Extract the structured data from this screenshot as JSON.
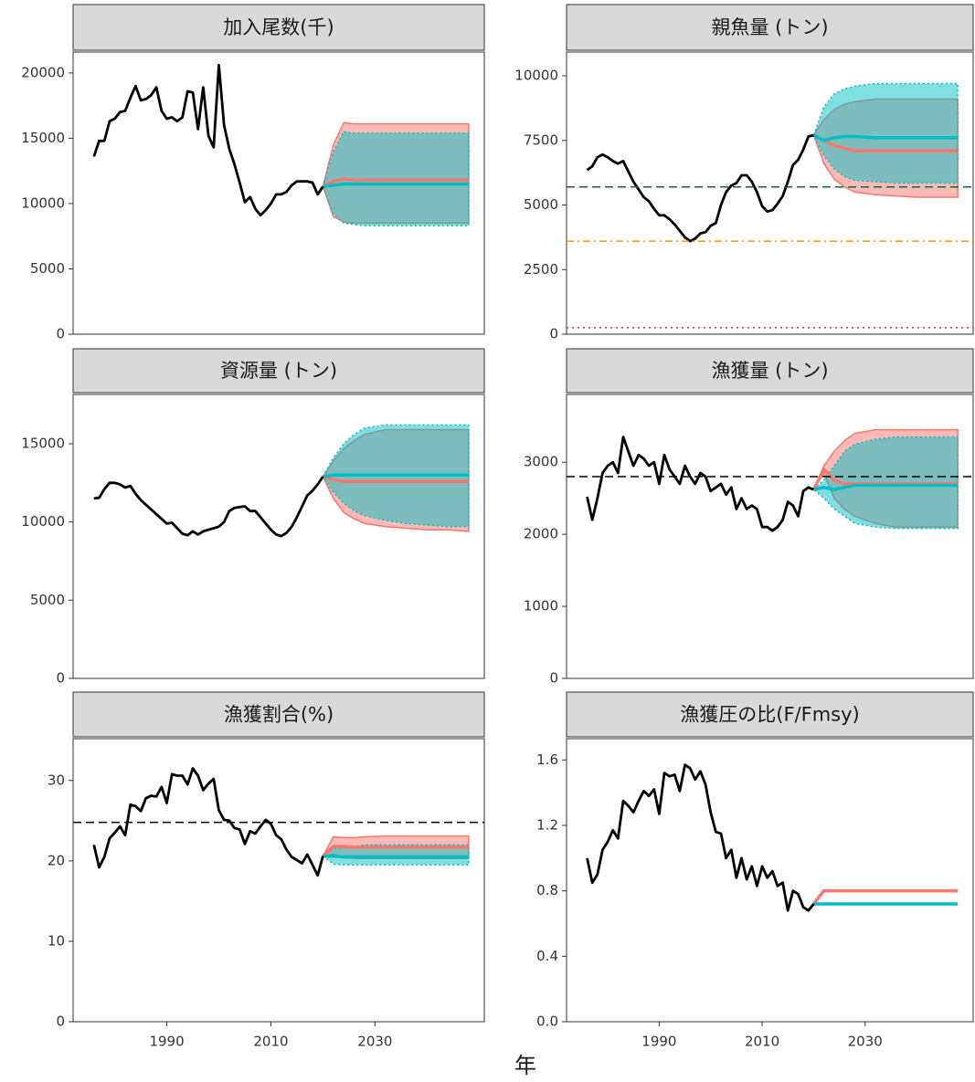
{
  "x_axis": {
    "label": "年",
    "xlim": [
      1972,
      2051
    ],
    "xticks": [
      1990,
      2010,
      2030
    ]
  },
  "years": [
    1976,
    1977,
    1978,
    1979,
    1980,
    1981,
    1982,
    1983,
    1984,
    1985,
    1986,
    1987,
    1988,
    1989,
    1990,
    1991,
    1992,
    1993,
    1994,
    1995,
    1996,
    1997,
    1998,
    1999,
    2000,
    2001,
    2002,
    2003,
    2004,
    2005,
    2006,
    2007,
    2008,
    2009,
    2010,
    2011,
    2012,
    2013,
    2014,
    2015,
    2016,
    2017,
    2018,
    2019,
    2020
  ],
  "projection_years": [
    2020,
    2022,
    2024,
    2026,
    2028,
    2032,
    2036,
    2040,
    2044,
    2048
  ],
  "chart_data": [
    {
      "type": "line",
      "title": "加入尾数(千)",
      "ylim": [
        0,
        21600
      ],
      "yticks": [
        0,
        5000,
        10000,
        15000,
        20000
      ],
      "series": [
        {
          "color": "#000000",
          "values": [
            13600,
            14800,
            14800,
            16300,
            16500,
            17000,
            17100,
            18100,
            19000,
            17900,
            18000,
            18300,
            18900,
            17100,
            16500,
            16600,
            16300,
            16600,
            18600,
            18500,
            15700,
            18900,
            15200,
            14300,
            20600,
            16000,
            14200,
            13000,
            11600,
            10100,
            10500,
            9600,
            9100,
            9500,
            10000,
            10700,
            10700,
            10900,
            11400,
            11700,
            11700,
            11700,
            11600,
            10700,
            11300
          ]
        }
      ],
      "projections": [
        {
          "color": "#F8766D",
          "median": [
            11300,
            11700,
            11900,
            11800,
            11800,
            11800,
            11800,
            11800,
            11800,
            11800
          ],
          "lower": [
            11300,
            9000,
            8600,
            8500,
            8500,
            8500,
            8500,
            8500,
            8500,
            8500
          ],
          "upper": [
            11300,
            14500,
            16200,
            16100,
            16100,
            16100,
            16100,
            16100,
            16100,
            16100
          ]
        },
        {
          "color": "#00BFC4",
          "median": [
            11300,
            11400,
            11500,
            11500,
            11500,
            11500,
            11500,
            11500,
            11500,
            11500
          ],
          "lower": [
            11300,
            9200,
            8500,
            8400,
            8300,
            8300,
            8300,
            8300,
            8300,
            8300
          ],
          "upper": [
            11300,
            14000,
            15500,
            15400,
            15400,
            15400,
            15400,
            15400,
            15400,
            15400
          ]
        }
      ],
      "hlines": []
    },
    {
      "type": "line",
      "title": "親魚量 (トン)",
      "ylim": [
        0,
        10920
      ],
      "yticks": [
        0,
        2500,
        5000,
        7500,
        10000
      ],
      "series": [
        {
          "color": "#000000",
          "values": [
            6350,
            6500,
            6850,
            6950,
            6850,
            6700,
            6600,
            6700,
            6300,
            5900,
            5600,
            5300,
            5150,
            4850,
            4600,
            4600,
            4450,
            4250,
            4000,
            3750,
            3600,
            3700,
            3900,
            3950,
            4200,
            4300,
            5000,
            5500,
            5750,
            5850,
            6150,
            6150,
            5900,
            5500,
            4950,
            4750,
            4800,
            5050,
            5350,
            5900,
            6550,
            6750,
            7150,
            7650,
            7700
          ]
        }
      ],
      "projections": [
        {
          "color": "#F8766D",
          "median": [
            7700,
            7500,
            7300,
            7200,
            7100,
            7100,
            7100,
            7100,
            7100,
            7100
          ],
          "lower": [
            7700,
            6600,
            6000,
            5700,
            5500,
            5400,
            5350,
            5300,
            5300,
            5300
          ],
          "upper": [
            7700,
            8300,
            8700,
            8900,
            9000,
            9100,
            9100,
            9100,
            9100,
            9100
          ]
        },
        {
          "color": "#00BFC4",
          "median": [
            7700,
            7500,
            7600,
            7650,
            7650,
            7600,
            7600,
            7600,
            7600,
            7600
          ],
          "lower": [
            7700,
            6900,
            6400,
            6100,
            5950,
            5900,
            5850,
            5850,
            5850,
            5850
          ],
          "upper": [
            7700,
            8800,
            9300,
            9500,
            9600,
            9700,
            9700,
            9700,
            9700,
            9700
          ]
        }
      ],
      "hlines": [
        {
          "value": 5700,
          "color": "#1b5e40",
          "dash": "dashed"
        },
        {
          "value": 3600,
          "color": "#e6a000",
          "dash": "dotdash"
        },
        {
          "value": 250,
          "color": "#b03a2e",
          "dash": "dotted"
        }
      ]
    },
    {
      "type": "line",
      "title": "資源量 (トン)",
      "ylim": [
        0,
        18150
      ],
      "yticks": [
        0,
        5000,
        10000,
        15000
      ],
      "series": [
        {
          "color": "#000000",
          "values": [
            11500,
            11550,
            12100,
            12500,
            12500,
            12400,
            12200,
            12300,
            11800,
            11400,
            11100,
            10800,
            10500,
            10200,
            9900,
            9950,
            9600,
            9250,
            9150,
            9400,
            9200,
            9400,
            9500,
            9600,
            9700,
            10000,
            10700,
            10900,
            10950,
            11000,
            10700,
            10700,
            10300,
            9900,
            9500,
            9200,
            9100,
            9300,
            9700,
            10300,
            11000,
            11700,
            12000,
            12400,
            12900
          ]
        }
      ],
      "projections": [
        {
          "color": "#F8766D",
          "median": [
            12900,
            12700,
            12600,
            12600,
            12600,
            12600,
            12600,
            12600,
            12600,
            12600
          ],
          "lower": [
            12900,
            11500,
            10600,
            10200,
            9900,
            9700,
            9600,
            9500,
            9500,
            9400
          ],
          "upper": [
            12900,
            13900,
            14700,
            15200,
            15600,
            15900,
            15900,
            15900,
            15900,
            15900
          ]
        },
        {
          "color": "#00BFC4",
          "median": [
            12900,
            13000,
            13000,
            13000,
            13000,
            13000,
            13000,
            13000,
            13000,
            13000
          ],
          "lower": [
            12900,
            11900,
            11200,
            10700,
            10400,
            10100,
            9900,
            9800,
            9700,
            9700
          ],
          "upper": [
            12900,
            14100,
            15000,
            15600,
            16000,
            16200,
            16200,
            16200,
            16200,
            16200
          ]
        }
      ],
      "hlines": []
    },
    {
      "type": "line",
      "title": "漁獲量 (トン)",
      "ylim": [
        0,
        3940
      ],
      "yticks": [
        0,
        1000,
        2000,
        3000
      ],
      "series": [
        {
          "color": "#000000",
          "values": [
            2520,
            2200,
            2500,
            2850,
            2950,
            3000,
            2850,
            3350,
            3150,
            2950,
            3100,
            3050,
            2950,
            3000,
            2700,
            3100,
            2900,
            2800,
            2700,
            2950,
            2800,
            2700,
            2850,
            2800,
            2600,
            2650,
            2700,
            2550,
            2650,
            2350,
            2500,
            2350,
            2400,
            2350,
            2100,
            2100,
            2050,
            2100,
            2200,
            2450,
            2400,
            2250,
            2600,
            2650,
            2620
          ]
        }
      ],
      "projections": [
        {
          "color": "#F8766D",
          "median": [
            2620,
            2900,
            2750,
            2700,
            2700,
            2700,
            2700,
            2700,
            2700,
            2700
          ],
          "lower": [
            2620,
            2850,
            2500,
            2350,
            2250,
            2150,
            2100,
            2100,
            2100,
            2100
          ],
          "upper": [
            2620,
            2950,
            3150,
            3300,
            3400,
            3450,
            3450,
            3450,
            3450,
            3450
          ]
        },
        {
          "color": "#00BFC4",
          "median": [
            2620,
            2650,
            2620,
            2650,
            2680,
            2680,
            2680,
            2680,
            2680,
            2680
          ],
          "lower": [
            2620,
            2500,
            2350,
            2250,
            2150,
            2100,
            2080,
            2080,
            2080,
            2080
          ],
          "upper": [
            2620,
            2750,
            2950,
            3150,
            3250,
            3320,
            3350,
            3350,
            3350,
            3350
          ]
        }
      ],
      "hlines": [
        {
          "value": 2800,
          "color": "#000000",
          "dash": "dashed"
        }
      ]
    },
    {
      "type": "line",
      "title": "漁獲割合(%)",
      "ylim": [
        0,
        35.2
      ],
      "yticks": [
        0,
        10,
        20,
        30
      ],
      "series": [
        {
          "color": "#000000",
          "values": [
            22,
            19.2,
            20.5,
            22.8,
            23.5,
            24.3,
            23.2,
            27,
            26.8,
            26.2,
            27.8,
            28.1,
            28,
            29.2,
            27.2,
            30.8,
            30.6,
            30.6,
            29.5,
            31.5,
            30.6,
            28.8,
            29.6,
            30.2,
            26.3,
            25.1,
            25,
            24.1,
            23.9,
            22.1,
            23.7,
            23.4,
            24.3,
            25.1,
            24.6,
            23.2,
            22.7,
            21.4,
            20.5,
            20.1,
            19.7,
            20.8,
            19.5,
            18.2,
            20.6
          ]
        }
      ],
      "projections": [
        {
          "color": "#F8766D",
          "median": [
            20.6,
            21.8,
            21.8,
            21.7,
            21.7,
            21.7,
            21.7,
            21.7,
            21.7,
            21.7
          ],
          "lower": [
            20.6,
            20.8,
            20.5,
            20.3,
            20.3,
            20.3,
            20.3,
            20.3,
            20.3,
            20.3
          ],
          "upper": [
            20.6,
            23,
            22.9,
            22.9,
            23,
            23.1,
            23.1,
            23.1,
            23.1,
            23.1
          ]
        },
        {
          "color": "#00BFC4",
          "median": [
            20.6,
            20.6,
            20.5,
            20.5,
            20.5,
            20.5,
            20.5,
            20.5,
            20.5,
            20.5
          ],
          "lower": [
            20.6,
            19.6,
            19.5,
            19.5,
            19.5,
            19.5,
            19.5,
            19.5,
            19.5,
            19.5
          ],
          "upper": [
            20.6,
            21.5,
            21.7,
            21.8,
            22,
            22,
            22,
            22,
            22,
            22
          ]
        }
      ],
      "hlines": [
        {
          "value": 24.8,
          "color": "#000000",
          "dash": "dashed"
        }
      ]
    },
    {
      "type": "line",
      "title": "漁獲圧の比(F/Fmsy)",
      "ylim": [
        0,
        1.73
      ],
      "yticks": [
        {
          "value": 0,
          "label": "0.0"
        },
        0.4,
        0.8,
        1.2,
        1.6
      ],
      "series": [
        {
          "color": "#000000",
          "values": [
            1.0,
            0.85,
            0.9,
            1.05,
            1.1,
            1.17,
            1.12,
            1.35,
            1.32,
            1.28,
            1.35,
            1.41,
            1.38,
            1.42,
            1.27,
            1.52,
            1.5,
            1.51,
            1.41,
            1.57,
            1.55,
            1.48,
            1.53,
            1.45,
            1.28,
            1.16,
            1.15,
            1.0,
            1.05,
            0.88,
            1.0,
            0.87,
            0.95,
            0.83,
            0.95,
            0.88,
            0.92,
            0.83,
            0.85,
            0.68,
            0.8,
            0.78,
            0.7,
            0.68,
            0.72
          ]
        }
      ],
      "projections": [
        {
          "color": "#F8766D",
          "median": [
            0.72,
            0.8,
            0.8,
            0.8,
            0.8,
            0.8,
            0.8,
            0.8,
            0.8,
            0.8
          ]
        },
        {
          "color": "#00BFC4",
          "median": [
            0.72,
            0.72,
            0.72,
            0.72,
            0.72,
            0.72,
            0.72,
            0.72,
            0.72,
            0.72
          ]
        }
      ],
      "hlines": []
    }
  ]
}
